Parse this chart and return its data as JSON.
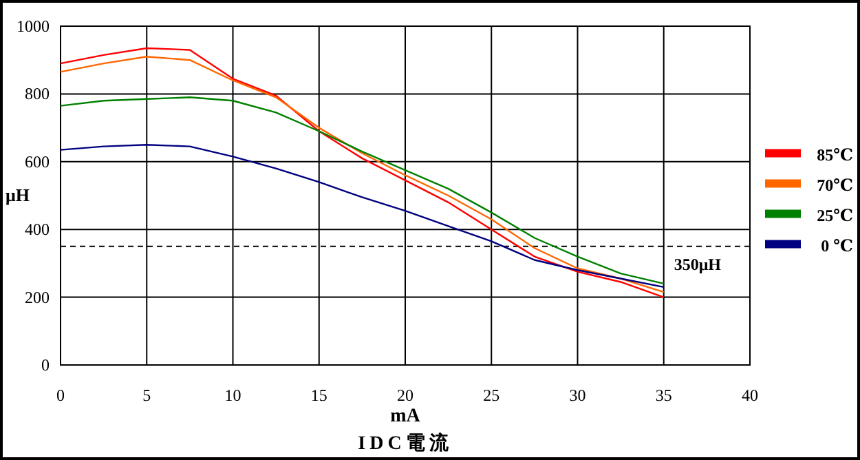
{
  "chart_data": {
    "type": "line",
    "xlabel": "mA",
    "ylabel": "μH",
    "annotations": [
      "IDC電流"
    ],
    "x": [
      0,
      2.5,
      5,
      7.5,
      10,
      12.5,
      15,
      17.5,
      20,
      22.5,
      25,
      27.5,
      30,
      32.5,
      35
    ],
    "series": [
      {
        "name": "85℃",
        "color": "#ff0000",
        "values": [
          890,
          915,
          935,
          930,
          845,
          795,
          690,
          610,
          545,
          480,
          400,
          320,
          275,
          245,
          200
        ]
      },
      {
        "name": "70℃",
        "color": "#ff6600",
        "values": [
          865,
          890,
          910,
          900,
          840,
          790,
          700,
          625,
          560,
          500,
          430,
          345,
          285,
          255,
          215
        ]
      },
      {
        "name": "25℃",
        "color": "#008000",
        "values": [
          765,
          780,
          785,
          790,
          780,
          745,
          690,
          630,
          575,
          520,
          450,
          375,
          320,
          270,
          240
        ]
      },
      {
        "name": "0 ℃",
        "color": "#000080",
        "values": [
          635,
          645,
          650,
          645,
          615,
          580,
          540,
          495,
          455,
          410,
          365,
          310,
          280,
          255,
          230
        ]
      }
    ],
    "xlim": [
      0,
      40
    ],
    "xticks": [
      0,
      5,
      10,
      15,
      20,
      25,
      30,
      35,
      40
    ],
    "ylim": [
      0,
      1000
    ],
    "yticks": [
      0,
      200,
      400,
      600,
      800,
      1000
    ],
    "ref_lines": [
      {
        "axis": "y",
        "value": 350,
        "label": "350μH",
        "color": "#000000",
        "line_style": "dashed"
      }
    ],
    "grid": true,
    "legend": "right",
    "line_style": "solid"
  }
}
